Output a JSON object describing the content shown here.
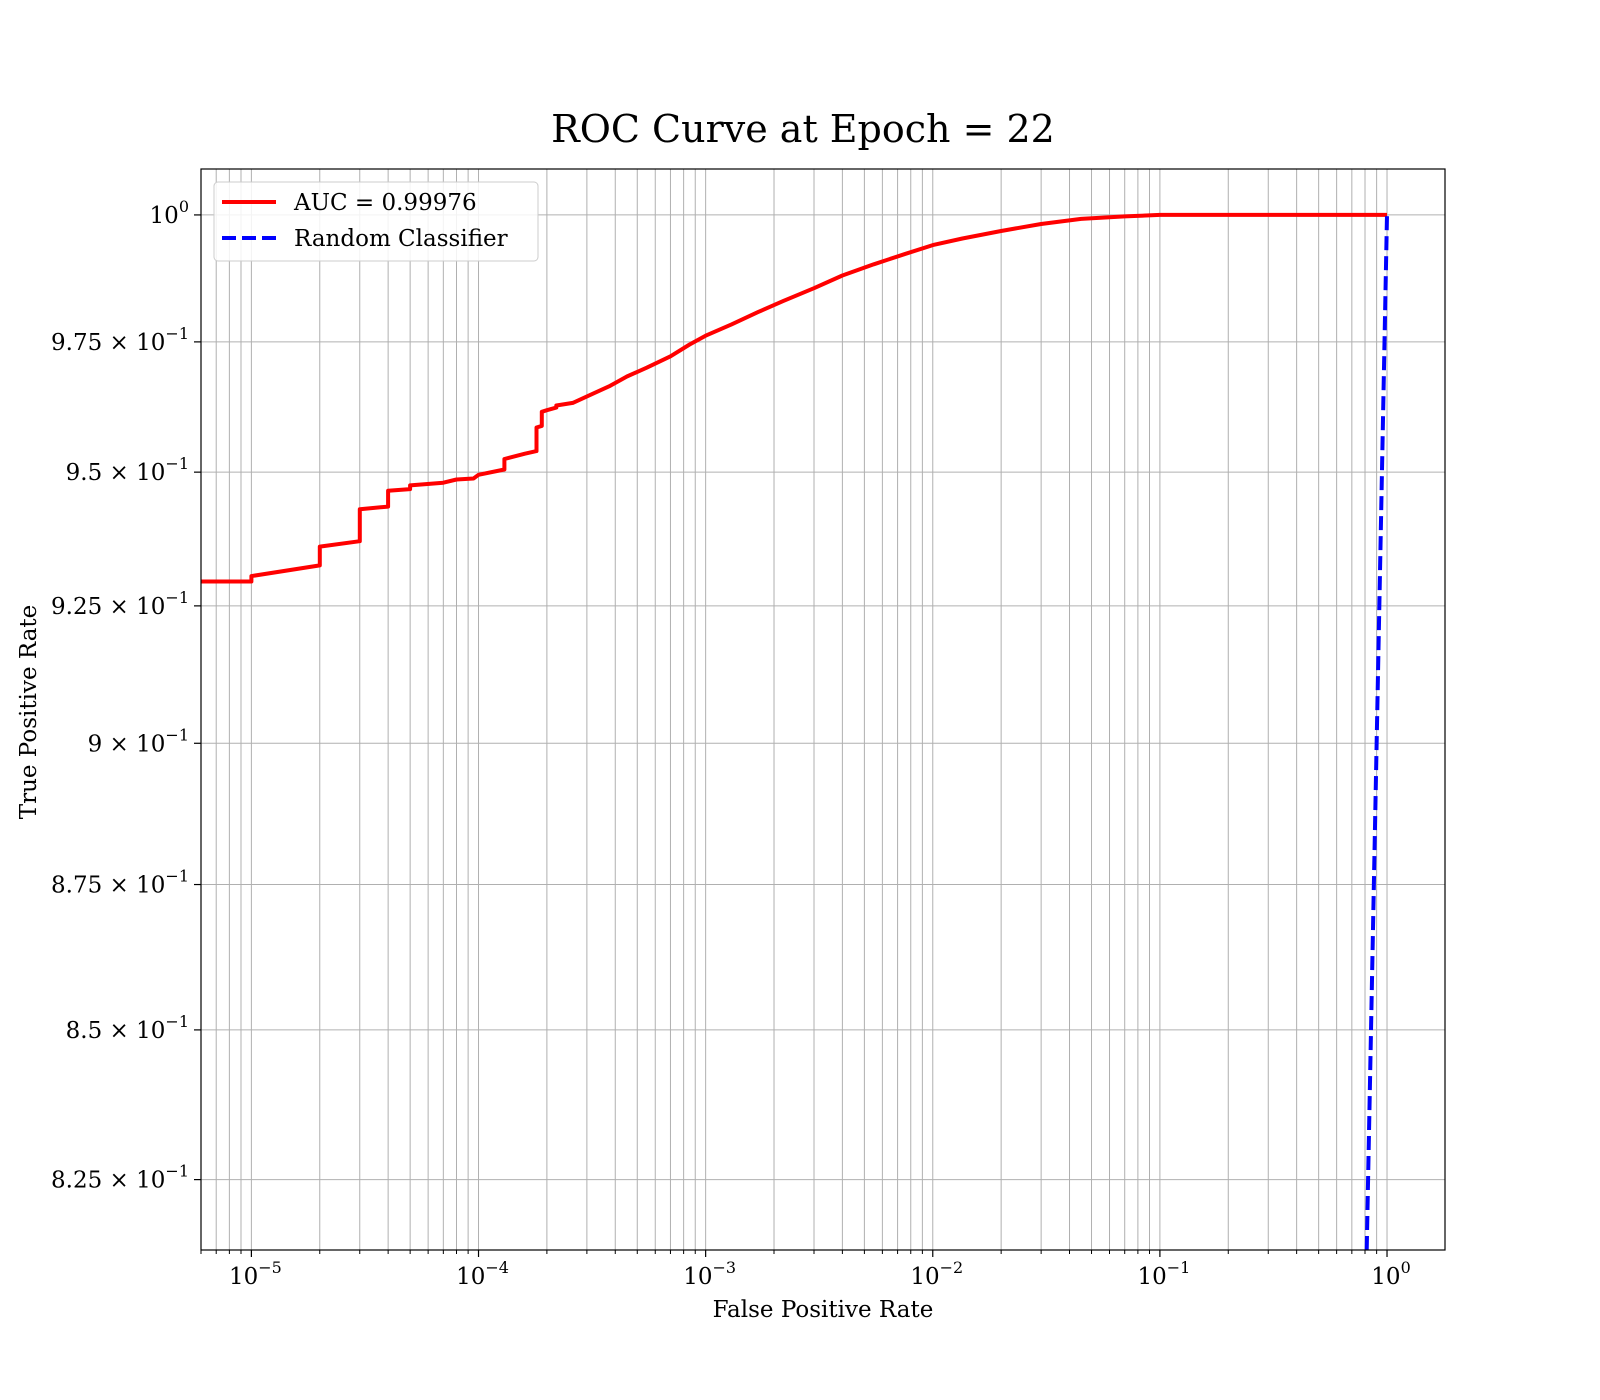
{
  "chart_data": {
    "type": "line",
    "title": "ROC Curve at Epoch = 22",
    "xlabel": "False Positive Rate",
    "ylabel": "True Positive Rate",
    "xscale": "log",
    "yscale": "log",
    "xlim": [
      6e-06,
      1.8
    ],
    "ylim": [
      0.8135,
      1.0092
    ],
    "grid": true,
    "legend_position": "top-left",
    "x_ticks": [
      {
        "value": 1e-05,
        "mantissa": "10",
        "exp": "−5"
      },
      {
        "value": 0.0001,
        "mantissa": "10",
        "exp": "−4"
      },
      {
        "value": 0.001,
        "mantissa": "10",
        "exp": "−3"
      },
      {
        "value": 0.01,
        "mantissa": "10",
        "exp": "−2"
      },
      {
        "value": 0.1,
        "mantissa": "10",
        "exp": "−1"
      },
      {
        "value": 1,
        "mantissa": "10",
        "exp": "0"
      }
    ],
    "y_ticks": [
      {
        "value": 1.0,
        "mantissa": "10",
        "exp": "0"
      },
      {
        "value": 0.975,
        "mantissa": "9.75 × 10",
        "exp": "−1"
      },
      {
        "value": 0.95,
        "mantissa": "9.5 × 10",
        "exp": "−1"
      },
      {
        "value": 0.925,
        "mantissa": "9.25 × 10",
        "exp": "−1"
      },
      {
        "value": 0.9,
        "mantissa": "9 × 10",
        "exp": "−1"
      },
      {
        "value": 0.875,
        "mantissa": "8.75 × 10",
        "exp": "−1"
      },
      {
        "value": 0.85,
        "mantissa": "8.5 × 10",
        "exp": "−1"
      },
      {
        "value": 0.825,
        "mantissa": "8.25 × 10",
        "exp": "−1"
      }
    ],
    "series": [
      {
        "name": "AUC = 0.99976",
        "color": "#ff0000",
        "dash": "solid",
        "x": [
          6e-06,
          1e-05,
          1e-05,
          2e-05,
          2e-05,
          3e-05,
          3e-05,
          4e-05,
          4e-05,
          5e-05,
          5e-05,
          7e-05,
          8e-05,
          9.5e-05,
          0.0001,
          0.00013,
          0.00013,
          0.00016,
          0.00018,
          0.00018,
          0.00019,
          0.00019,
          0.0002,
          0.00022,
          0.00022,
          0.00026,
          0.00032,
          0.00038,
          0.00045,
          0.00055,
          0.0007,
          0.00085,
          0.001,
          0.0013,
          0.0017,
          0.0022,
          0.003,
          0.004,
          0.0055,
          0.0075,
          0.01,
          0.0135,
          0.02,
          0.03,
          0.045,
          0.07,
          0.1,
          0.2,
          0.5,
          1.0
        ],
        "y": [
          0.9295,
          0.9295,
          0.9305,
          0.9325,
          0.936,
          0.937,
          0.943,
          0.9435,
          0.9465,
          0.9468,
          0.9475,
          0.948,
          0.9486,
          0.9488,
          0.9495,
          0.9505,
          0.9525,
          0.9535,
          0.954,
          0.9585,
          0.9588,
          0.9615,
          0.9618,
          0.9623,
          0.9627,
          0.9632,
          0.965,
          0.9665,
          0.9683,
          0.97,
          0.9722,
          0.9745,
          0.9762,
          0.9784,
          0.9808,
          0.983,
          0.9855,
          0.988,
          0.9902,
          0.9922,
          0.994,
          0.9953,
          0.9968,
          0.9982,
          0.9992,
          0.9997,
          1.0,
          1.0,
          1.0,
          1.0
        ]
      },
      {
        "name": "Random Classifier",
        "color": "#0000ff",
        "dash": "dashed",
        "x": [
          0.8135,
          1.0
        ],
        "y": [
          0.8135,
          1.0
        ]
      }
    ]
  }
}
